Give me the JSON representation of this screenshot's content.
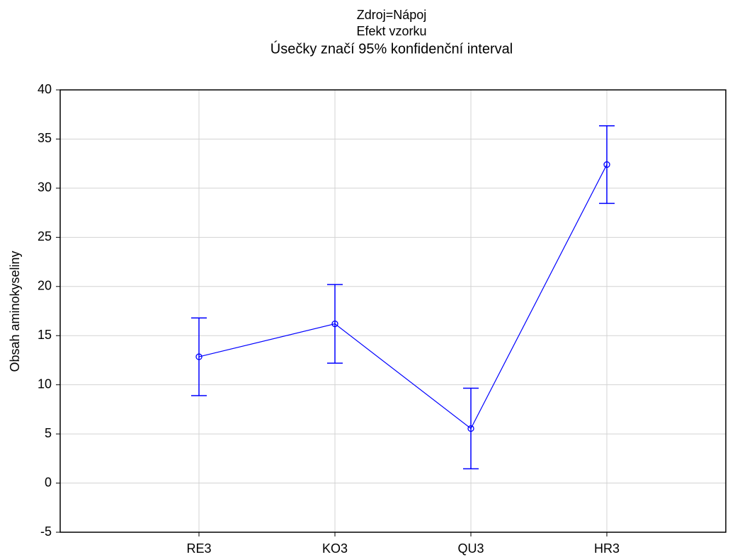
{
  "chart_data": {
    "type": "line",
    "title": "Zdroj=Nápoj",
    "subtitle": "Efekt vzorku",
    "annotation": "Úsečky značí 95% konfidenční interval",
    "y_label": "Obsah aminokyseliny",
    "categories": [
      "RE3",
      "KO3",
      "QU3",
      "HR3"
    ],
    "series": [
      {
        "color": "#0000ff",
        "values": [
          12.85,
          16.2,
          5.55,
          32.4
        ],
        "errors": [
          3.95,
          4.0,
          4.1,
          3.95
        ]
      }
    ],
    "ylim": [
      -5,
      40
    ],
    "yticks": [
      -5,
      0,
      5,
      10,
      15,
      20,
      25,
      30,
      35,
      40
    ],
    "grid": true
  }
}
